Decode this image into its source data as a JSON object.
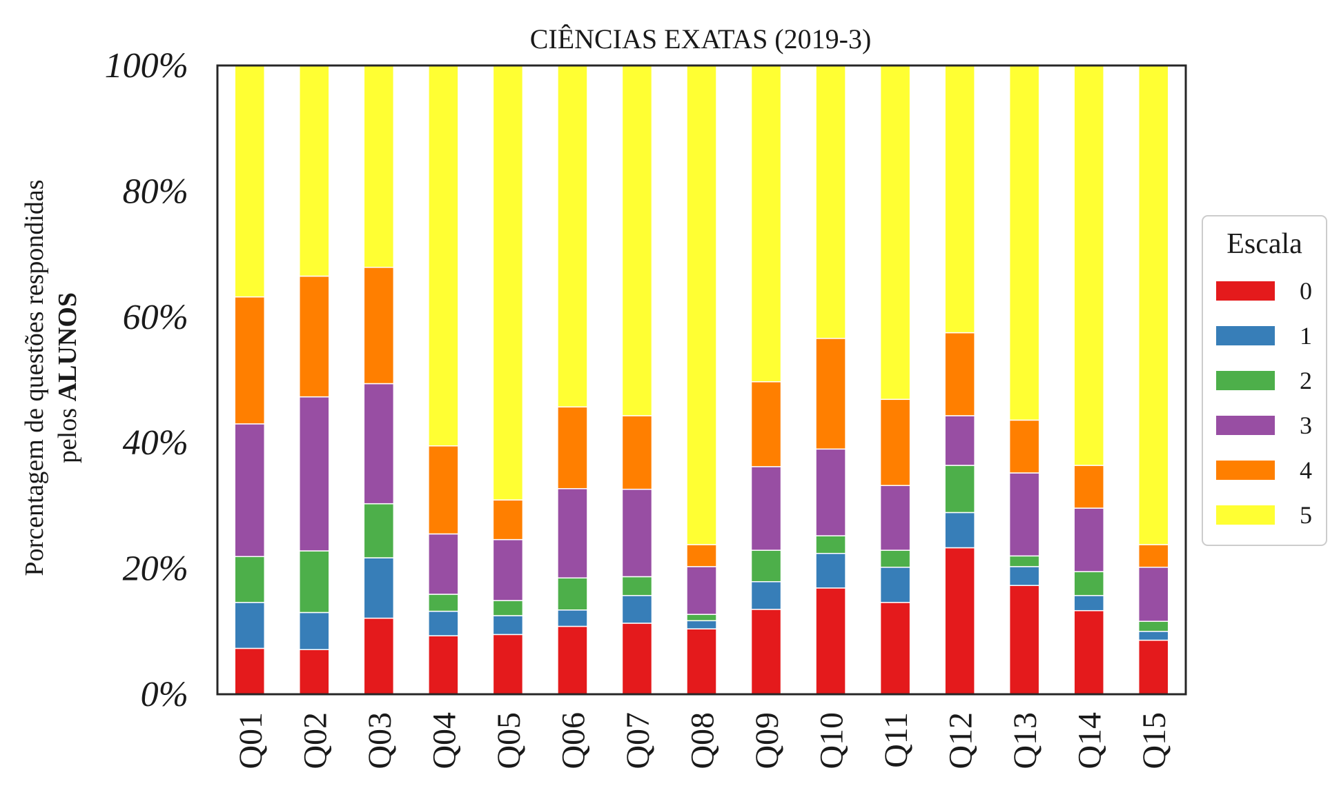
{
  "chart_data": {
    "type": "bar",
    "stacked": true,
    "title": "CIÊNCIAS EXATAS (2019-3)",
    "ylabel_line1": "Porcentagem de questões respondidas",
    "ylabel_line2_prefix": "pelos ",
    "ylabel_line2_bold": "ALUNOS",
    "categories": [
      "Q01",
      "Q02",
      "Q03",
      "Q04",
      "Q05",
      "Q06",
      "Q07",
      "Q08",
      "Q09",
      "Q10",
      "Q11",
      "Q12",
      "Q13",
      "Q14",
      "Q15"
    ],
    "ylim": [
      0,
      100
    ],
    "yticks": [
      0,
      20,
      40,
      60,
      80,
      100
    ],
    "ytick_labels": [
      "0%",
      "20%",
      "40%",
      "60%",
      "80%",
      "100%"
    ],
    "grid": false,
    "legend": {
      "title": "Escala",
      "placement": "right-center"
    },
    "series": [
      {
        "name": "0",
        "color": "#e41a1c",
        "values": [
          7.3,
          7.1,
          12.1,
          9.3,
          9.5,
          10.8,
          11.3,
          10.4,
          13.5,
          16.9,
          14.6,
          23.3,
          17.3,
          13.3,
          8.6
        ]
      },
      {
        "name": "1",
        "color": "#377eb8",
        "values": [
          7.3,
          5.9,
          9.6,
          3.9,
          3.0,
          2.6,
          4.4,
          1.3,
          4.4,
          5.5,
          5.6,
          5.6,
          3.0,
          2.4,
          1.4
        ]
      },
      {
        "name": "2",
        "color": "#4daf4a",
        "values": [
          7.3,
          9.8,
          8.6,
          2.7,
          2.4,
          5.1,
          3.0,
          1.0,
          5.0,
          2.8,
          2.7,
          7.5,
          1.7,
          3.8,
          1.6
        ]
      },
      {
        "name": "3",
        "color": "#984ea3",
        "values": [
          21.1,
          24.5,
          19.1,
          9.6,
          9.7,
          14.2,
          13.9,
          7.6,
          13.3,
          13.8,
          10.3,
          7.9,
          13.2,
          10.1,
          8.6
        ]
      },
      {
        "name": "4",
        "color": "#ff7f00",
        "values": [
          20.2,
          19.2,
          18.5,
          14.0,
          6.3,
          13.0,
          11.7,
          3.5,
          13.5,
          17.6,
          13.7,
          13.2,
          8.4,
          6.8,
          3.6
        ]
      },
      {
        "name": "5",
        "color": "#ffff33",
        "values": [
          36.8,
          33.5,
          32.1,
          60.5,
          69.1,
          54.3,
          55.7,
          76.2,
          50.3,
          43.4,
          53.1,
          42.5,
          56.4,
          63.6,
          76.2
        ]
      }
    ]
  }
}
